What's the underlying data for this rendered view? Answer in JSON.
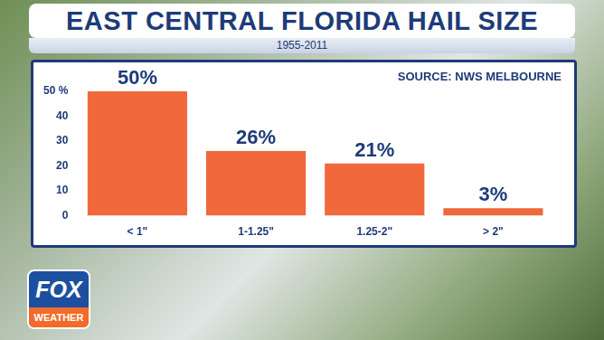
{
  "chart_data": {
    "type": "bar",
    "title": "EAST CENTRAL FLORIDA HAIL SIZE",
    "subtitle": "1955-2011",
    "source": "SOURCE: NWS MELBOURNE",
    "logo": [
      "FOX",
      "WEATHER"
    ],
    "categories": [
      "< 1\"",
      "1-1.25\"",
      "1.25-2\"",
      "> 2\""
    ],
    "values": [
      50,
      26,
      21,
      3
    ],
    "value_labels": [
      "50%",
      "26%",
      "21%",
      "3%"
    ],
    "color": "#f0683c",
    "ylim": [
      0,
      50
    ],
    "yticks": [
      0,
      10,
      20,
      30,
      40,
      {
        "value": 50,
        "label": "50 %"
      }
    ],
    "grid": false,
    "data_labels": true
  }
}
